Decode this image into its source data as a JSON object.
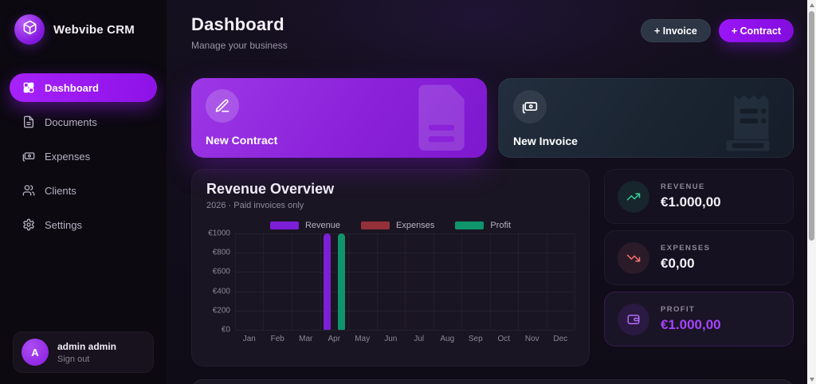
{
  "brand": {
    "name": "Webvibe CRM",
    "logo_icon": "cube-icon"
  },
  "sidebar": {
    "items": [
      {
        "label": "Dashboard",
        "icon": "grid-icon",
        "active": true
      },
      {
        "label": "Documents",
        "icon": "document-icon",
        "active": false
      },
      {
        "label": "Expenses",
        "icon": "banknote-icon",
        "active": false
      },
      {
        "label": "Clients",
        "icon": "users-icon",
        "active": false
      },
      {
        "label": "Settings",
        "icon": "gear-icon",
        "active": false
      }
    ],
    "user": {
      "name": "admin admin",
      "initial": "A",
      "sign_out_label": "Sign out"
    }
  },
  "header": {
    "title": "Dashboard",
    "subtitle": "Manage your business",
    "invoice_button": "+ Invoice",
    "contract_button": "+ Contract"
  },
  "quick_actions": [
    {
      "label": "New Contract",
      "icon": "signature-icon",
      "watermark": "document-icon",
      "accent": "#8b22da"
    },
    {
      "label": "New Invoice",
      "icon": "banknote-icon",
      "watermark": "receipt-icon",
      "accent": "#1a2431"
    }
  ],
  "chart_card": {
    "title": "Revenue Overview",
    "subtitle": "2026 · Paid invoices only"
  },
  "chart_data": {
    "type": "bar",
    "title": "Revenue Overview",
    "subtitle": "2026 · Paid invoices only",
    "categories": [
      "Jan",
      "Feb",
      "Mar",
      "Apr",
      "May",
      "Jun",
      "Jul",
      "Aug",
      "Sep",
      "Oct",
      "Nov",
      "Dec"
    ],
    "series": [
      {
        "name": "Revenue",
        "color": "#7c1fd6",
        "values": [
          0,
          0,
          0,
          1000,
          0,
          0,
          0,
          0,
          0,
          0,
          0,
          0
        ]
      },
      {
        "name": "Expenses",
        "color": "#943039",
        "values": [
          0,
          0,
          0,
          0,
          0,
          0,
          0,
          0,
          0,
          0,
          0,
          0
        ]
      },
      {
        "name": "Profit",
        "color": "#10946c",
        "values": [
          0,
          0,
          0,
          1000,
          0,
          0,
          0,
          0,
          0,
          0,
          0,
          0
        ]
      }
    ],
    "ylim": [
      0,
      1000
    ],
    "yticks": [
      "€1000",
      "€800",
      "€600",
      "€400",
      "€200",
      "€0"
    ],
    "currency": "EUR",
    "legend_position": "top",
    "grid": true
  },
  "stats": [
    {
      "label": "REVENUE",
      "value": "€1.000,00",
      "icon": "trend-up-icon",
      "accent": "#34d399"
    },
    {
      "label": "EXPENSES",
      "value": "€0,00",
      "icon": "trend-down-icon",
      "accent": "#f87171"
    },
    {
      "label": "PROFIT",
      "value": "€1.000,00",
      "icon": "wallet-icon",
      "accent": "#a743fa"
    }
  ],
  "colors": {
    "accent_purple": "#9a1df6",
    "bar_revenue": "#7c1fd6",
    "bar_expenses": "#943039",
    "bar_profit": "#10946c",
    "profit_text": "#a743fa"
  }
}
